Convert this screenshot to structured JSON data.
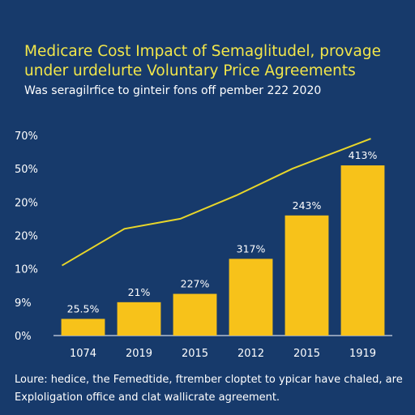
{
  "chart_data": {
    "type": "bar",
    "title": "Medicare Cost Impact of Semaglitudel, provage under urdelurte Voluntary Price Agreements",
    "subtitle": "Was seragilrfice to ginteir fons off pember 222 2020",
    "categories": [
      "1074",
      "2019",
      "2015",
      "2012",
      "2015",
      "1919"
    ],
    "y_ticks": [
      "0%",
      "9%",
      "10%",
      "20%",
      "20%",
      "50%",
      "70%"
    ],
    "ylim": [
      0,
      6
    ],
    "series": [
      {
        "type": "bar",
        "values": [
          0.5,
          1.0,
          1.25,
          2.3,
          3.6,
          5.1
        ],
        "labels": [
          "25.5%",
          "21%",
          "227%",
          "317%",
          "243%",
          "413%"
        ]
      },
      {
        "type": "line",
        "values": [
          2.1,
          3.2,
          3.5,
          4.2,
          5.0,
          5.9
        ]
      }
    ],
    "source": "Loure: hedice, the Femedtide, ftrember cloptet to ypicar have chaled, are Exploligation office and clat wallicrate agreement.",
    "colors": {
      "background": "#173a6b",
      "bar": "#f7c21a",
      "line": "#e8d62a",
      "title": "#f2e64a"
    },
    "grid": false,
    "legend": "none"
  }
}
